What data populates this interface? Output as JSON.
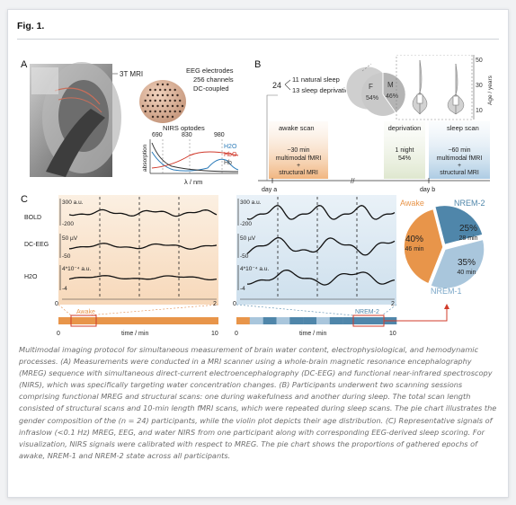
{
  "figure": {
    "title": "Fig. 1.",
    "caption": "Multimodal imaging protocol for simultaneous measurement of brain water content, electrophysiological, and hemodynamic processes. (A) Measurements were conducted in a MRI scanner using a whole-brain magnetic resonance encephalography (MREG) sequence with simultaneous direct-current electroencephalography (DC-EEG) and functional near-infrared spectroscopy (NIRS), which was specifically targeting water concentration changes. (B) Participants underwent two scanning sessions comprising functional MREG and structural scans: one during wakefulness and another during sleep. The total scan length consisted of structural scans and 10-min length fMRI scans, which were repeated during sleep scans. The pie chart illustrates the gender composition of the (n = 24) participants, while the violin plot depicts their age distribution. (C) Representative signals of infraslow (<0.1 Hz) MREG, EEG, and water NIRS from one participant along with corresponding EEG-derived sleep scoring. For visualization, NIRS signals were calibrated with respect to MREG. The pie chart shows the proportions of gathered epochs of awake, NREM-1 and NREM-2 state across all participants."
  },
  "panel_a": {
    "label": "A",
    "mri_label": "3T MRI",
    "eeg_lines": [
      "EEG electrodes",
      "256 channels",
      "DC-coupled"
    ],
    "nirs_label": "NIRS optodes",
    "wavelengths": [
      "690",
      "830",
      "980"
    ],
    "ylabel": "absorption",
    "xlabel": "λ / nm",
    "legend": [
      "H2O",
      "HbO",
      "Hb"
    ]
  },
  "panel_b": {
    "label": "B",
    "total": "24",
    "groups": [
      "11 natural sleep",
      "13 sleep deprivation"
    ],
    "gender_labels": [
      "F",
      "M"
    ],
    "gender_values": [
      "54%",
      "46%"
    ],
    "age_axis_title": "Age / years",
    "age_ticks": [
      "50",
      "30",
      "10"
    ],
    "awake_box": {
      "title": "awake scan",
      "lines": [
        "~30 min",
        "multimodal fMRI",
        "+",
        "structural MRI"
      ]
    },
    "deprivation_box": {
      "title": "deprivation",
      "lines": [
        "1 night",
        "54%"
      ]
    },
    "sleep_box": {
      "title": "sleep scan",
      "lines": [
        "~60 min",
        "multimodal fMRI",
        "+",
        "structural MRI"
      ]
    },
    "day_a": "day a",
    "day_b": "day b",
    "break_mark": "//"
  },
  "panel_c": {
    "label": "C",
    "signal_labels": [
      "BOLD",
      "DC-EEG",
      "H2O"
    ],
    "left_ticks": {
      "bold": [
        "300 a.u.",
        "-200"
      ],
      "eeg": [
        "50 µV",
        "-50"
      ],
      "h2o": [
        "4*10⁻⁴ a.u.",
        "-4"
      ]
    },
    "right_ticks": {
      "bold": [
        "300 a.u.",
        "-200"
      ],
      "eeg": [
        "50 µV",
        "-50"
      ],
      "h2o": [
        "4*10⁻⁴ a.u.",
        "-4"
      ]
    },
    "zoom_ticks": [
      "0",
      "2"
    ],
    "hypno_ticks": [
      "0",
      "10"
    ],
    "hypno_xlabel": "time / min",
    "stage_awake": "Awake",
    "stage_nrem2": "NREM-2",
    "colors": {
      "awake": "#e8954a",
      "nrem1": "#a9c6dc",
      "nrem2": "#4f86aa"
    }
  },
  "chart_data": {
    "type": "pie",
    "categories": [
      "Awake",
      "NREM-2",
      "NREM-1"
    ],
    "values": [
      40,
      25,
      35
    ],
    "value_labels": [
      "40%",
      "25%",
      "35%"
    ],
    "duration_labels": [
      "46 min",
      "28 min",
      "40 min"
    ],
    "colors": [
      "#e8954a",
      "#4f86aa",
      "#a9c6dc"
    ]
  }
}
